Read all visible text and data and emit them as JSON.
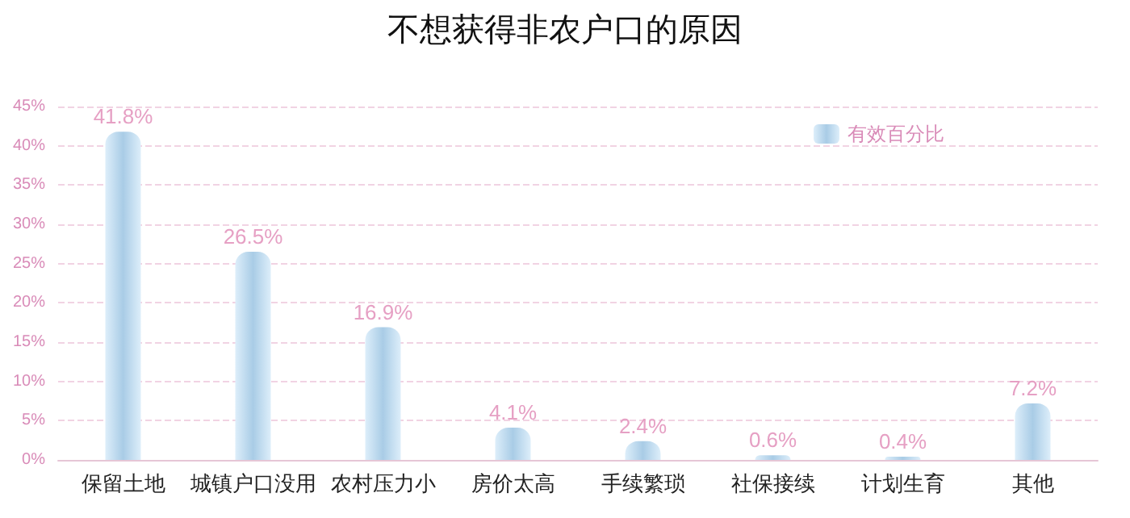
{
  "chart_data": {
    "type": "bar",
    "title": "不想获得非农户口的原因",
    "categories": [
      "保留土地",
      "城镇户口没用",
      "农村压力小",
      "房价太高",
      "手续繁琐",
      "社保接续",
      "计划生育",
      "其他"
    ],
    "series": [
      {
        "name": "有效百分比",
        "color": "#a9cce6",
        "values": [
          41.8,
          26.5,
          16.9,
          4.1,
          2.4,
          0.6,
          0.4,
          7.2
        ],
        "value_labels": [
          "41.8%",
          "26.5%",
          "16.9%",
          "4.1%",
          "2.4%",
          "0.6%",
          "0.4%",
          "7.2%"
        ]
      }
    ],
    "ylim": [
      0,
      45
    ],
    "yticks": [
      {
        "value": 0,
        "label": "0%"
      },
      {
        "value": 5,
        "label": "5%"
      },
      {
        "value": 10,
        "label": "10%"
      },
      {
        "value": 15,
        "label": "15%"
      },
      {
        "value": 20,
        "label": "20%"
      },
      {
        "value": 25,
        "label": "25%"
      },
      {
        "value": 30,
        "label": "30%"
      },
      {
        "value": 35,
        "label": "35%"
      },
      {
        "value": 40,
        "label": "40%"
      },
      {
        "value": 45,
        "label": "45%"
      }
    ],
    "grid": "y",
    "legend": "top right"
  }
}
